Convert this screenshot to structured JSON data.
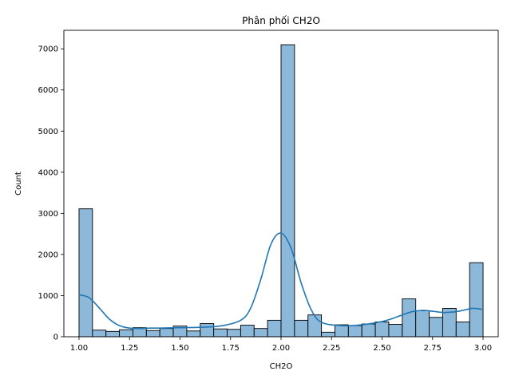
{
  "chart_data": {
    "type": "bar",
    "subtype": "histogram-with-kde",
    "title": "Phân phối CH2O",
    "xlabel": "CH2O",
    "ylabel": "Count",
    "xlim": [
      0.925,
      3.075
    ],
    "ylim": [
      0,
      7450
    ],
    "x_ticks": [
      1.0,
      1.25,
      1.5,
      1.75,
      2.0,
      2.25,
      2.5,
      2.75,
      3.0
    ],
    "x_tick_labels": [
      "1.00",
      "1.25",
      "1.50",
      "1.75",
      "2.00",
      "2.25",
      "2.50",
      "2.75",
      "3.00"
    ],
    "y_ticks": [
      0,
      1000,
      2000,
      3000,
      4000,
      5000,
      6000,
      7000
    ],
    "y_tick_labels": [
      "0",
      "1000",
      "2000",
      "3000",
      "4000",
      "5000",
      "6000",
      "7000"
    ],
    "grid": false,
    "legend": "none",
    "bin_edges": [
      1.0,
      1.0667,
      1.1333,
      1.2,
      1.2667,
      1.3333,
      1.4,
      1.4667,
      1.5333,
      1.6,
      1.6667,
      1.7333,
      1.8,
      1.8667,
      1.9333,
      2.0,
      2.0667,
      2.1333,
      2.2,
      2.2667,
      2.3333,
      2.4,
      2.4667,
      2.5333,
      2.6,
      2.6667,
      2.7333,
      2.8,
      2.8667,
      2.9333,
      3.0
    ],
    "counts": [
      3110,
      160,
      130,
      170,
      220,
      150,
      200,
      260,
      140,
      320,
      190,
      180,
      280,
      200,
      400,
      7100,
      400,
      530,
      110,
      290,
      270,
      310,
      360,
      300,
      920,
      630,
      470,
      690,
      360,
      1800
    ],
    "kde": {
      "x": [
        1.0,
        1.05,
        1.1,
        1.15,
        1.2,
        1.25,
        1.3,
        1.35,
        1.4,
        1.5,
        1.6,
        1.7,
        1.8,
        1.85,
        1.9,
        1.95,
        2.0,
        2.05,
        2.1,
        2.15,
        2.2,
        2.3,
        2.4,
        2.5,
        2.55,
        2.6,
        2.65,
        2.7,
        2.75,
        2.8,
        2.85,
        2.9,
        2.95,
        3.0
      ],
      "y": [
        1020,
        950,
        700,
        430,
        270,
        210,
        200,
        210,
        210,
        220,
        230,
        260,
        400,
        700,
        1400,
        2250,
        2520,
        2150,
        1300,
        650,
        350,
        270,
        290,
        370,
        440,
        530,
        610,
        640,
        620,
        590,
        600,
        640,
        690,
        660
      ]
    },
    "colors": {
      "bar_fill": "#8cb8da",
      "bar_edge": "#000000",
      "kde_line": "#1f77b4"
    }
  }
}
